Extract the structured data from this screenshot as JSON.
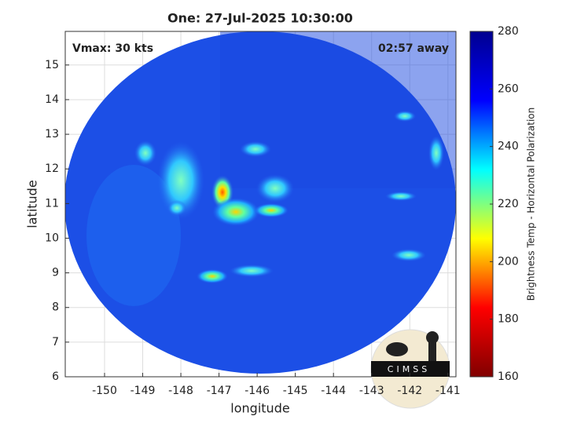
{
  "chart_data": {
    "type": "heatmap",
    "title": "One: 27-Jul-2025 10:30:00",
    "annotations": [
      "Vmax: 30 kts",
      "02:57 away"
    ],
    "xlabel": "longitude",
    "ylabel": "latitude",
    "xlim": [
      -151.03,
      -140.79
    ],
    "xticks": [
      -150,
      -149,
      -148,
      -147,
      -146,
      -145,
      -144,
      -143,
      -142,
      -141
    ],
    "ylim": [
      6,
      15.97
    ],
    "yticks": [
      6,
      7,
      8,
      9,
      10,
      11,
      12,
      13,
      14,
      15
    ],
    "grid": true,
    "colorbar": {
      "label": "Brightness Temp - Horizontal Polarization",
      "colormap": "jet",
      "clim": [
        160,
        280
      ],
      "ticks": [
        160,
        180,
        200,
        220,
        240,
        260,
        280
      ]
    },
    "logo": "CIMSS"
  }
}
